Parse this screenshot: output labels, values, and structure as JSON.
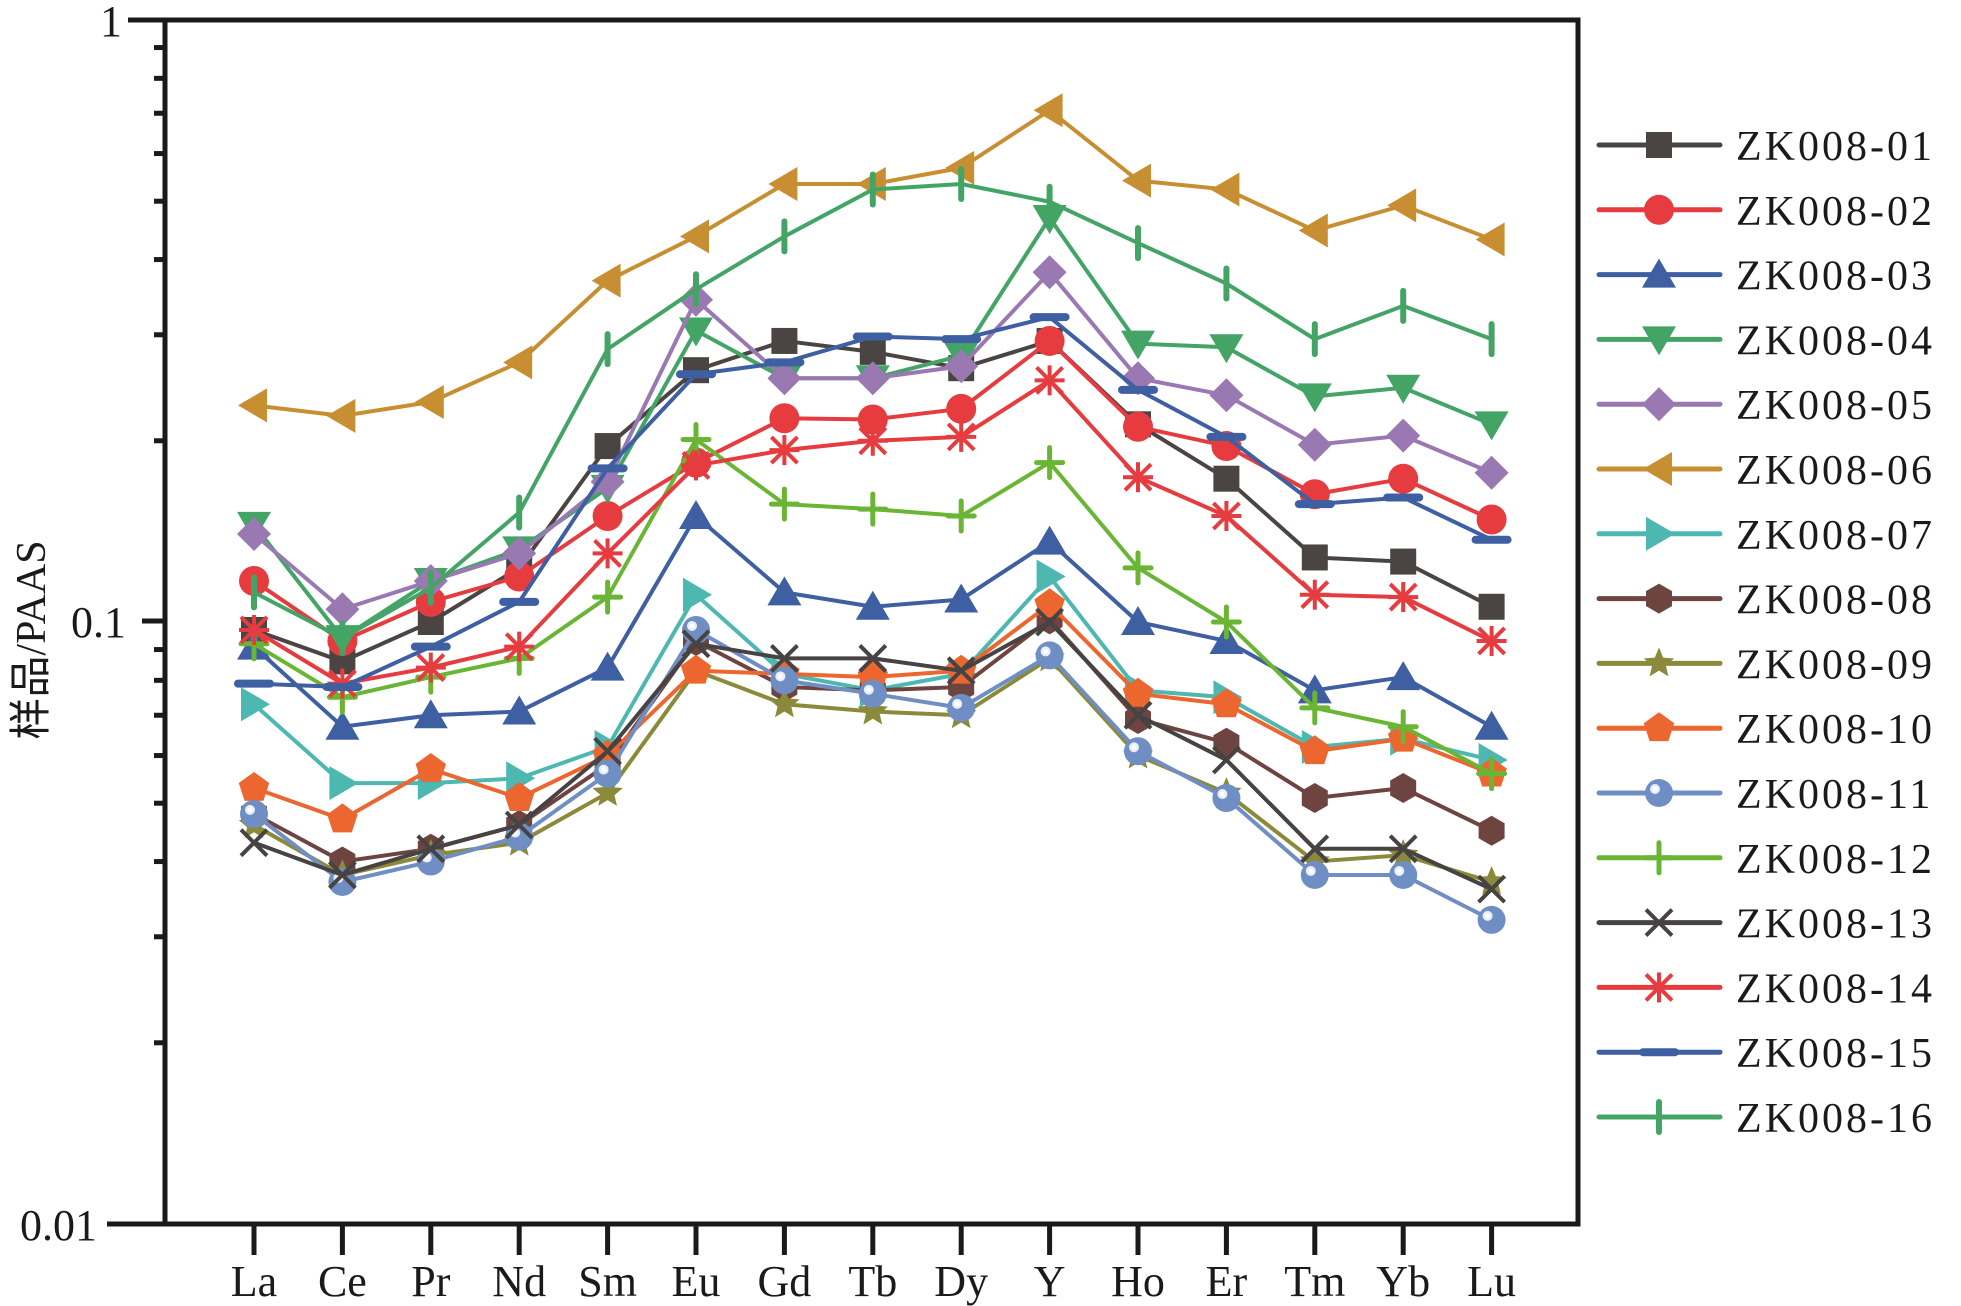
{
  "chart_data": {
    "type": "line",
    "title": "",
    "xlabel": "",
    "ylabel": "样品/PAAS",
    "yscale": "log",
    "ylim": [
      0.01,
      1
    ],
    "yticks": [
      0.01,
      0.1,
      1
    ],
    "ytick_labels": [
      "0.01",
      "0.1",
      "1"
    ],
    "grid": false,
    "legend_position": "right",
    "categories": [
      "La",
      "Ce",
      "Pr",
      "Nd",
      "Sm",
      "Eu",
      "Gd",
      "Tb",
      "Dy",
      "Y",
      "Ho",
      "Er",
      "Tm",
      "Yb",
      "Lu"
    ],
    "series": [
      {
        "name": "ZK008-01",
        "color": "#4a4542",
        "marker": "square",
        "values": [
          0.097,
          0.086,
          0.1,
          0.123,
          0.196,
          0.262,
          0.293,
          0.281,
          0.264,
          0.293,
          0.213,
          0.173,
          0.128,
          0.126,
          0.106
        ]
      },
      {
        "name": "ZK008-02",
        "color": "#e63c3f",
        "marker": "circle",
        "values": [
          0.117,
          0.093,
          0.108,
          0.119,
          0.15,
          0.184,
          0.218,
          0.217,
          0.226,
          0.293,
          0.211,
          0.196,
          0.163,
          0.173,
          0.148
        ]
      },
      {
        "name": "ZK008-03",
        "color": "#3f5fa3",
        "marker": "triangle-up",
        "values": [
          0.091,
          0.067,
          0.07,
          0.071,
          0.084,
          0.15,
          0.112,
          0.106,
          0.109,
          0.136,
          0.1,
          0.093,
          0.077,
          0.081,
          0.067
        ]
      },
      {
        "name": "ZK008-04",
        "color": "#43a466",
        "marker": "triangle-down",
        "values": [
          0.145,
          0.094,
          0.117,
          0.132,
          0.167,
          0.305,
          0.254,
          0.254,
          0.277,
          0.469,
          0.29,
          0.286,
          0.237,
          0.245,
          0.213
        ]
      },
      {
        "name": "ZK008-05",
        "color": "#9a78b2",
        "marker": "diamond",
        "values": [
          0.14,
          0.105,
          0.117,
          0.13,
          0.171,
          0.343,
          0.254,
          0.254,
          0.266,
          0.381,
          0.254,
          0.238,
          0.197,
          0.204,
          0.177
        ]
      },
      {
        "name": "ZK008-06",
        "color": "#c78f32",
        "marker": "triangle-left",
        "values": [
          0.229,
          0.22,
          0.232,
          0.27,
          0.369,
          0.437,
          0.534,
          0.534,
          0.568,
          0.708,
          0.541,
          0.523,
          0.447,
          0.492,
          0.432
        ]
      },
      {
        "name": "ZK008-07",
        "color": "#4db8b1",
        "marker": "triangle-right",
        "values": [
          0.073,
          0.054,
          0.054,
          0.055,
          0.062,
          0.111,
          0.082,
          0.077,
          0.082,
          0.119,
          0.077,
          0.075,
          0.062,
          0.064,
          0.059
        ]
      },
      {
        "name": "ZK008-08",
        "color": "#6e4440",
        "marker": "hexagon",
        "values": [
          0.048,
          0.04,
          0.042,
          0.046,
          0.058,
          0.093,
          0.078,
          0.077,
          0.078,
          0.101,
          0.069,
          0.063,
          0.051,
          0.053,
          0.045
        ]
      },
      {
        "name": "ZK008-09",
        "color": "#8b8a3a",
        "marker": "star",
        "values": [
          0.046,
          0.038,
          0.041,
          0.043,
          0.052,
          0.083,
          0.073,
          0.071,
          0.07,
          0.087,
          0.06,
          0.052,
          0.04,
          0.041,
          0.037
        ]
      },
      {
        "name": "ZK008-10",
        "color": "#ec6630",
        "marker": "pentagon",
        "values": [
          0.053,
          0.047,
          0.057,
          0.051,
          0.06,
          0.083,
          0.082,
          0.081,
          0.083,
          0.107,
          0.076,
          0.073,
          0.061,
          0.064,
          0.056
        ]
      },
      {
        "name": "ZK008-11",
        "color": "#6f8fc4",
        "marker": "sphere",
        "values": [
          0.048,
          0.037,
          0.04,
          0.044,
          0.056,
          0.097,
          0.08,
          0.076,
          0.072,
          0.088,
          0.061,
          0.051,
          0.038,
          0.038,
          0.032
        ]
      },
      {
        "name": "ZK008-12",
        "color": "#6ab534",
        "marker": "plus",
        "values": [
          0.092,
          0.075,
          0.081,
          0.087,
          0.11,
          0.201,
          0.157,
          0.154,
          0.15,
          0.184,
          0.123,
          0.1,
          0.072,
          0.067,
          0.056
        ]
      },
      {
        "name": "ZK008-13",
        "color": "#474342",
        "marker": "cross",
        "values": [
          0.043,
          0.038,
          0.042,
          0.046,
          0.061,
          0.092,
          0.087,
          0.087,
          0.083,
          0.1,
          0.07,
          0.059,
          0.042,
          0.042,
          0.036
        ]
      },
      {
        "name": "ZK008-14",
        "color": "#e63c3f",
        "marker": "asterisk",
        "values": [
          0.097,
          0.079,
          0.084,
          0.091,
          0.13,
          0.182,
          0.193,
          0.2,
          0.203,
          0.252,
          0.174,
          0.15,
          0.111,
          0.11,
          0.093
        ]
      },
      {
        "name": "ZK008-15",
        "color": "#3f5fa3",
        "marker": "dash",
        "values": [
          0.079,
          0.078,
          0.091,
          0.108,
          0.18,
          0.258,
          0.27,
          0.298,
          0.295,
          0.321,
          0.243,
          0.203,
          0.157,
          0.161,
          0.137
        ]
      },
      {
        "name": "ZK008-16",
        "color": "#43a466",
        "marker": "vbar",
        "values": [
          0.112,
          0.094,
          0.114,
          0.152,
          0.284,
          0.357,
          0.437,
          0.523,
          0.534,
          0.499,
          0.426,
          0.365,
          0.295,
          0.335,
          0.295
        ]
      }
    ]
  }
}
